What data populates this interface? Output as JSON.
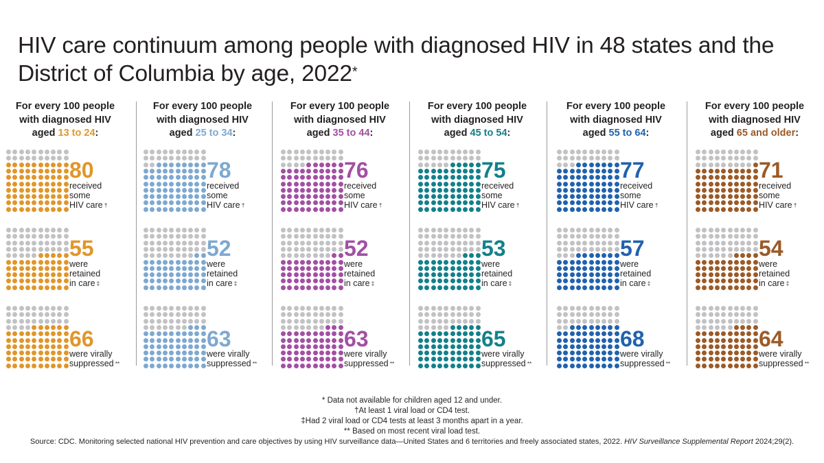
{
  "title": "HIV care continuum among people with diagnosed HIV in 48 states and the District of Columbia by age, 2022",
  "title_mark": "*",
  "header_line1": "For every 100 people",
  "header_line2": "with diagnosed HIV",
  "header_prefix": "aged",
  "colors": {
    "empty_dot": "#c2c2c4",
    "13_24": "#e0962a",
    "25_34": "#7ea8d0",
    "35_44": "#a24fa3",
    "45_54": "#13808a",
    "55_64": "#2062ad",
    "65_plus": "#9b5a27"
  },
  "chart_data": {
    "type": "waffle",
    "total_per_group": 100,
    "groups": [
      {
        "age": "13 to 24",
        "suffix": ":",
        "color_key": "13_24",
        "received_care": 80,
        "retained_in_care": 55,
        "virally_suppressed": 66
      },
      {
        "age": "25 to 34",
        "suffix": ":",
        "color_key": "25_34",
        "received_care": 78,
        "retained_in_care": 52,
        "virally_suppressed": 63
      },
      {
        "age": "35 to 44",
        "suffix": ":",
        "color_key": "35_44",
        "received_care": 76,
        "retained_in_care": 52,
        "virally_suppressed": 63
      },
      {
        "age": "45 to 54",
        "suffix": ":",
        "color_key": "45_54",
        "received_care": 75,
        "retained_in_care": 53,
        "virally_suppressed": 65
      },
      {
        "age": "55 to 64",
        "suffix": ":",
        "color_key": "55_64",
        "received_care": 77,
        "retained_in_care": 57,
        "virally_suppressed": 68
      },
      {
        "age": "65 and older",
        "suffix": ":",
        "color_key": "65_plus",
        "received_care": 71,
        "retained_in_care": 54,
        "virally_suppressed": 64
      }
    ],
    "metrics": [
      {
        "key": "received_care",
        "lines": [
          "received",
          "some",
          "HIV care"
        ],
        "mark": "†"
      },
      {
        "key": "retained_in_care",
        "lines": [
          "were",
          "retained",
          "in care"
        ],
        "mark": "‡"
      },
      {
        "key": "virally_suppressed",
        "lines": [
          "were virally",
          "suppressed"
        ],
        "mark": "**"
      }
    ]
  },
  "footnotes": [
    "* Data not available for children aged 12 and under.",
    "†At least 1 viral load or CD4 test.",
    "‡Had 2 viral load or CD4 tests at least 3 months apart in a year.",
    "** Based on most recent viral load test."
  ],
  "source_text": "Source: CDC. Monitoring selected national HIV prevention and care objectives by using HIV surveillance data—United States and 6 territories and freely associated states, 2022. ",
  "source_italic": "HIV Surveillance Supplemental Report",
  "source_end": " 2024;29(2)."
}
